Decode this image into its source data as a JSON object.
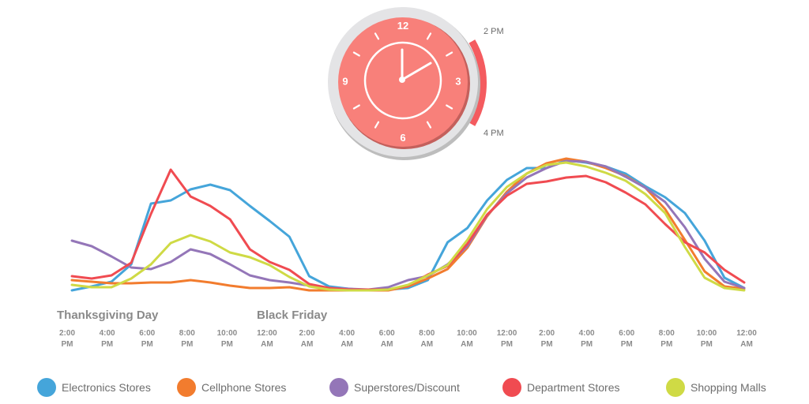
{
  "clock": {
    "numbers": [
      "12",
      "3",
      "6",
      "9"
    ],
    "range_start_label": "2 PM",
    "range_end_label": "4 PM",
    "face_color": "#f8807a",
    "highlight_color": "#f45b5f"
  },
  "chart_data": {
    "type": "line",
    "grid": false,
    "day_labels": [
      "Thanksgiving Day",
      "Black Friday"
    ],
    "x_ticks": [
      [
        "2:00",
        "PM"
      ],
      [
        "4:00",
        "PM"
      ],
      [
        "6:00",
        "PM"
      ],
      [
        "8:00",
        "PM"
      ],
      [
        "10:00",
        "PM"
      ],
      [
        "12:00",
        "AM"
      ],
      [
        "2:00",
        "AM"
      ],
      [
        "4:00",
        "AM"
      ],
      [
        "6:00",
        "AM"
      ],
      [
        "8:00",
        "AM"
      ],
      [
        "10:00",
        "AM"
      ],
      [
        "12:00",
        "PM"
      ],
      [
        "2:00",
        "PM"
      ],
      [
        "4:00",
        "PM"
      ],
      [
        "6:00",
        "PM"
      ],
      [
        "8:00",
        "PM"
      ],
      [
        "10:00",
        "PM"
      ],
      [
        "12:00",
        "AM"
      ]
    ],
    "x": [
      0,
      1,
      2,
      3,
      4,
      5,
      6,
      7,
      8,
      9,
      10,
      11,
      12,
      13,
      14,
      15,
      16,
      17,
      18,
      19,
      20,
      21,
      22,
      23,
      24,
      25,
      26,
      27,
      28,
      29,
      30,
      31,
      32,
      33,
      34
    ],
    "series": [
      {
        "name": "Electronics Stores",
        "color": "#45a5da",
        "values": [
          0,
          5,
          11,
          33,
          110,
          114,
          128,
          134,
          127,
          107,
          88,
          68,
          18,
          5,
          2,
          0,
          1,
          3,
          13,
          61,
          79,
          114,
          140,
          155,
          155,
          165,
          162,
          157,
          148,
          132,
          118,
          98,
          63,
          16,
          3
        ]
      },
      {
        "name": "Cellphone Stores",
        "color": "#f27c2e",
        "values": [
          13,
          11,
          9,
          9,
          10,
          10,
          13,
          10,
          6,
          3,
          3,
          4,
          0,
          0,
          0,
          0,
          0,
          5,
          15,
          27,
          54,
          94,
          125,
          148,
          161,
          167,
          163,
          155,
          145,
          130,
          103,
          64,
          24,
          5,
          2
        ]
      },
      {
        "name": "Superstores/Discount",
        "color": "#9476b8",
        "values": [
          63,
          56,
          43,
          29,
          27,
          36,
          52,
          46,
          33,
          19,
          13,
          10,
          6,
          3,
          2,
          1,
          4,
          13,
          18,
          33,
          56,
          95,
          123,
          143,
          155,
          164,
          163,
          157,
          144,
          130,
          112,
          80,
          40,
          11,
          3
        ]
      },
      {
        "name": "Department Stores",
        "color": "#f04b51",
        "values": [
          18,
          15,
          19,
          35,
          97,
          153,
          119,
          107,
          90,
          52,
          36,
          26,
          8,
          3,
          1,
          1,
          1,
          6,
          20,
          31,
          59,
          96,
          120,
          135,
          138,
          143,
          145,
          137,
          124,
          109,
          84,
          61,
          48,
          26,
          10
        ]
      },
      {
        "name": "Shopping Malls",
        "color": "#cfda45",
        "values": [
          7,
          4,
          4,
          15,
          33,
          60,
          70,
          62,
          48,
          42,
          32,
          17,
          5,
          1,
          0,
          0,
          1,
          7,
          19,
          32,
          64,
          103,
          131,
          148,
          159,
          162,
          157,
          149,
          139,
          122,
          98,
          55,
          16,
          3,
          0
        ]
      }
    ]
  },
  "legend": [
    {
      "label": "Electronics Stores",
      "color": "#45a5da"
    },
    {
      "label": "Cellphone Stores",
      "color": "#f27c2e"
    },
    {
      "label": "Superstores/Discount",
      "color": "#9476b8"
    },
    {
      "label": "Department Stores",
      "color": "#f04b51"
    },
    {
      "label": "Shopping Malls",
      "color": "#cfda45"
    }
  ]
}
